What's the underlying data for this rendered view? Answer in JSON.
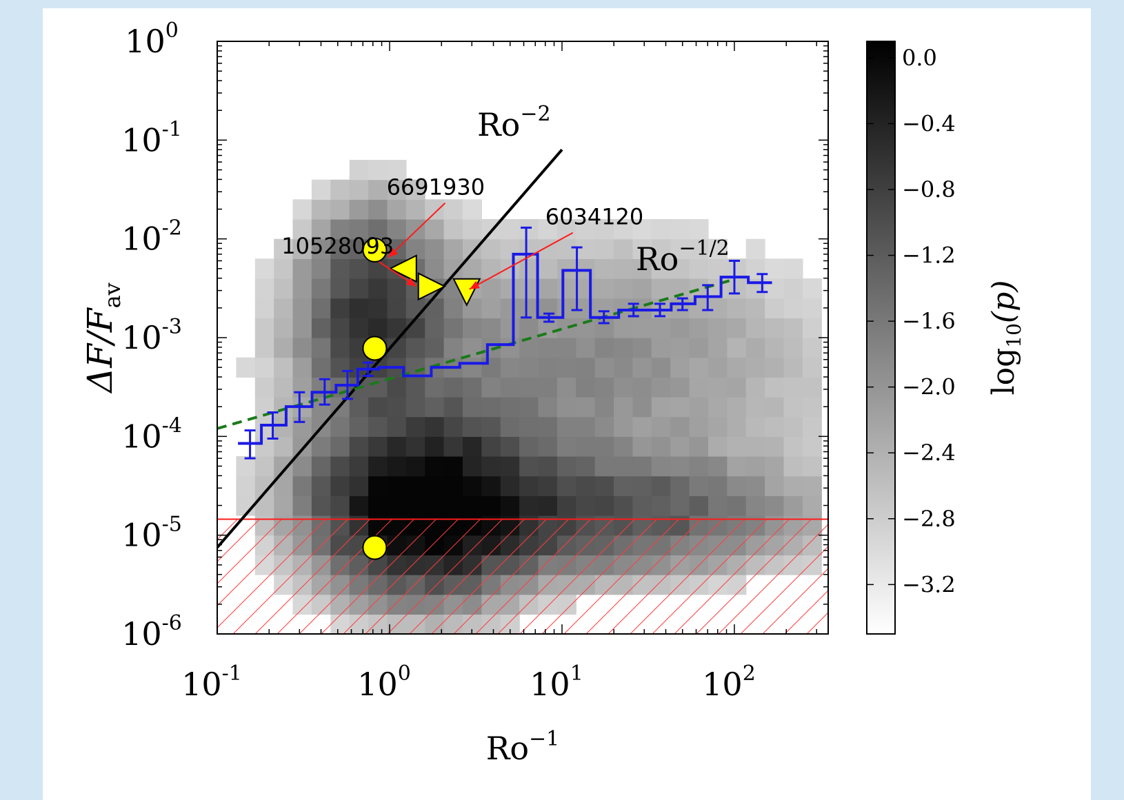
{
  "chart_data": {
    "type": "heatmap",
    "xlabel": {
      "base": "Ro",
      "sup": "−1"
    },
    "ylabel": {
      "main": "ΔF/F",
      "sub": "av"
    },
    "xscale": "log",
    "yscale": "log",
    "xlim": [
      0.1,
      350
    ],
    "ylim": [
      1e-06,
      1
    ],
    "x_ticks": [
      {
        "value": 0.1,
        "mant": "10",
        "exp": "-1"
      },
      {
        "value": 1,
        "mant": "10",
        "exp": "0"
      },
      {
        "value": 10,
        "mant": "10",
        "exp": "1"
      },
      {
        "value": 100,
        "mant": "10",
        "exp": "2"
      }
    ],
    "y_ticks": [
      {
        "value": 1e-06,
        "mant": "10",
        "exp": "-6"
      },
      {
        "value": 1e-05,
        "mant": "10",
        "exp": "-5"
      },
      {
        "value": 0.0001,
        "mant": "10",
        "exp": "-4"
      },
      {
        "value": 0.001,
        "mant": "10",
        "exp": "-3"
      },
      {
        "value": 0.01,
        "mant": "10",
        "exp": "-2"
      },
      {
        "value": 0.1,
        "mant": "10",
        "exp": "-1"
      },
      {
        "value": 1,
        "mant": "10",
        "exp": "0"
      }
    ],
    "colorbar": {
      "label": {
        "pre": "log",
        "sub": "10",
        "post": "(p)"
      },
      "range": [
        -3.5,
        0.1
      ],
      "ticks": [
        "0.0",
        "−0.4",
        "−0.8",
        "−1.2",
        "−1.6",
        "−2.0",
        "−2.4",
        "−2.8",
        "−3.2"
      ],
      "tick_values": [
        0.0,
        -0.4,
        -0.8,
        -1.2,
        -1.6,
        -2.0,
        -2.4,
        -2.8,
        -3.2
      ]
    },
    "heatmap": {
      "x_range": [
        0.1,
        320
      ],
      "y_range": [
        1e-06,
        1
      ],
      "nx": 32,
      "ny": 30,
      "description_components": [
        {
          "x": 1.6,
          "y": 2e-05,
          "weight": 1.0
        },
        {
          "x": 0.8,
          "y": 0.002,
          "weight": 0.6
        },
        {
          "x": 20,
          "y": 1.5e-05,
          "weight": 0.45
        }
      ]
    },
    "lines": [
      {
        "label": {
          "base": "Ro",
          "sup": "−2"
        },
        "color": "#000000",
        "style": "solid",
        "x": [
          0.1,
          10
        ],
        "y": [
          7.5e-06,
          0.08
        ]
      },
      {
        "label": {
          "base": "Ro",
          "sup": "−1/2"
        },
        "color": "#1a7a1a",
        "style": "dashed",
        "x": [
          0.1,
          100
        ],
        "y": [
          0.00012,
          0.0039
        ]
      }
    ],
    "threshold_y": 1.45e-05,
    "binned_series": {
      "color": "#1a1ae6",
      "points": [
        {
          "x": 0.155,
          "y": 8.5e-05,
          "lo": 6e-05,
          "hi": 0.000115
        },
        {
          "x": 0.21,
          "y": 0.00013,
          "lo": 9.5e-05,
          "hi": 0.000175
        },
        {
          "x": 0.3,
          "y": 0.0002,
          "lo": 0.00014,
          "hi": 0.00028
        },
        {
          "x": 0.42,
          "y": 0.00028,
          "lo": 0.00021,
          "hi": 0.00038
        },
        {
          "x": 0.57,
          "y": 0.00033,
          "lo": 0.00024,
          "hi": 0.00046
        },
        {
          "x": 0.75,
          "y": 0.00048,
          "lo": 0.00041,
          "hi": 0.00056
        },
        {
          "x": 1.0,
          "y": 0.0005,
          "lo": null,
          "hi": null
        },
        {
          "x": 1.45,
          "y": 0.00041,
          "lo": null,
          "hi": null
        },
        {
          "x": 2.1,
          "y": 0.0005,
          "lo": null,
          "hi": null
        },
        {
          "x": 3.1,
          "y": 0.00055,
          "lo": null,
          "hi": null
        },
        {
          "x": 4.4,
          "y": 0.00085,
          "lo": null,
          "hi": null
        },
        {
          "x": 6.2,
          "y": 0.007,
          "lo": 0.0016,
          "hi": 0.013
        },
        {
          "x": 8.4,
          "y": 0.0016,
          "lo": 0.00145,
          "hi": 0.00175
        },
        {
          "x": 12.2,
          "y": 0.0048,
          "lo": 0.0019,
          "hi": 0.0082
        },
        {
          "x": 17.5,
          "y": 0.0016,
          "lo": 0.0014,
          "hi": 0.00185
        },
        {
          "x": 26,
          "y": 0.0019,
          "lo": 0.00165,
          "hi": 0.0022
        },
        {
          "x": 37,
          "y": 0.0019,
          "lo": 0.00165,
          "hi": 0.0022
        },
        {
          "x": 50,
          "y": 0.0022,
          "lo": 0.0019,
          "hi": 0.0025
        },
        {
          "x": 70,
          "y": 0.0026,
          "lo": 0.0019,
          "hi": 0.0034
        },
        {
          "x": 100,
          "y": 0.0041,
          "lo": 0.0028,
          "hi": 0.006
        },
        {
          "x": 145,
          "y": 0.0036,
          "lo": 0.0029,
          "hi": 0.0044
        }
      ]
    },
    "markers": [
      {
        "shape": "circle",
        "x": 0.82,
        "y": 0.0077,
        "label": null
      },
      {
        "shape": "circle",
        "x": 0.82,
        "y": 0.00078,
        "label": null
      },
      {
        "shape": "circle",
        "x": 0.82,
        "y": 7.5e-06,
        "label": null
      },
      {
        "shape": "triangle-left",
        "x": 1.2,
        "y": 0.005,
        "label": "6691930",
        "label_x": 0.96,
        "label_y": 0.028
      },
      {
        "shape": "triangle-right",
        "x": 1.75,
        "y": 0.0033,
        "label": "10528093",
        "label_x": 0.5,
        "label_y": 0.0071
      },
      {
        "shape": "triangle-down",
        "x": 2.8,
        "y": 0.0029,
        "label": "6034120",
        "label_x": 8,
        "label_y": 0.014
      }
    ],
    "marker_color": "#ffff00"
  }
}
